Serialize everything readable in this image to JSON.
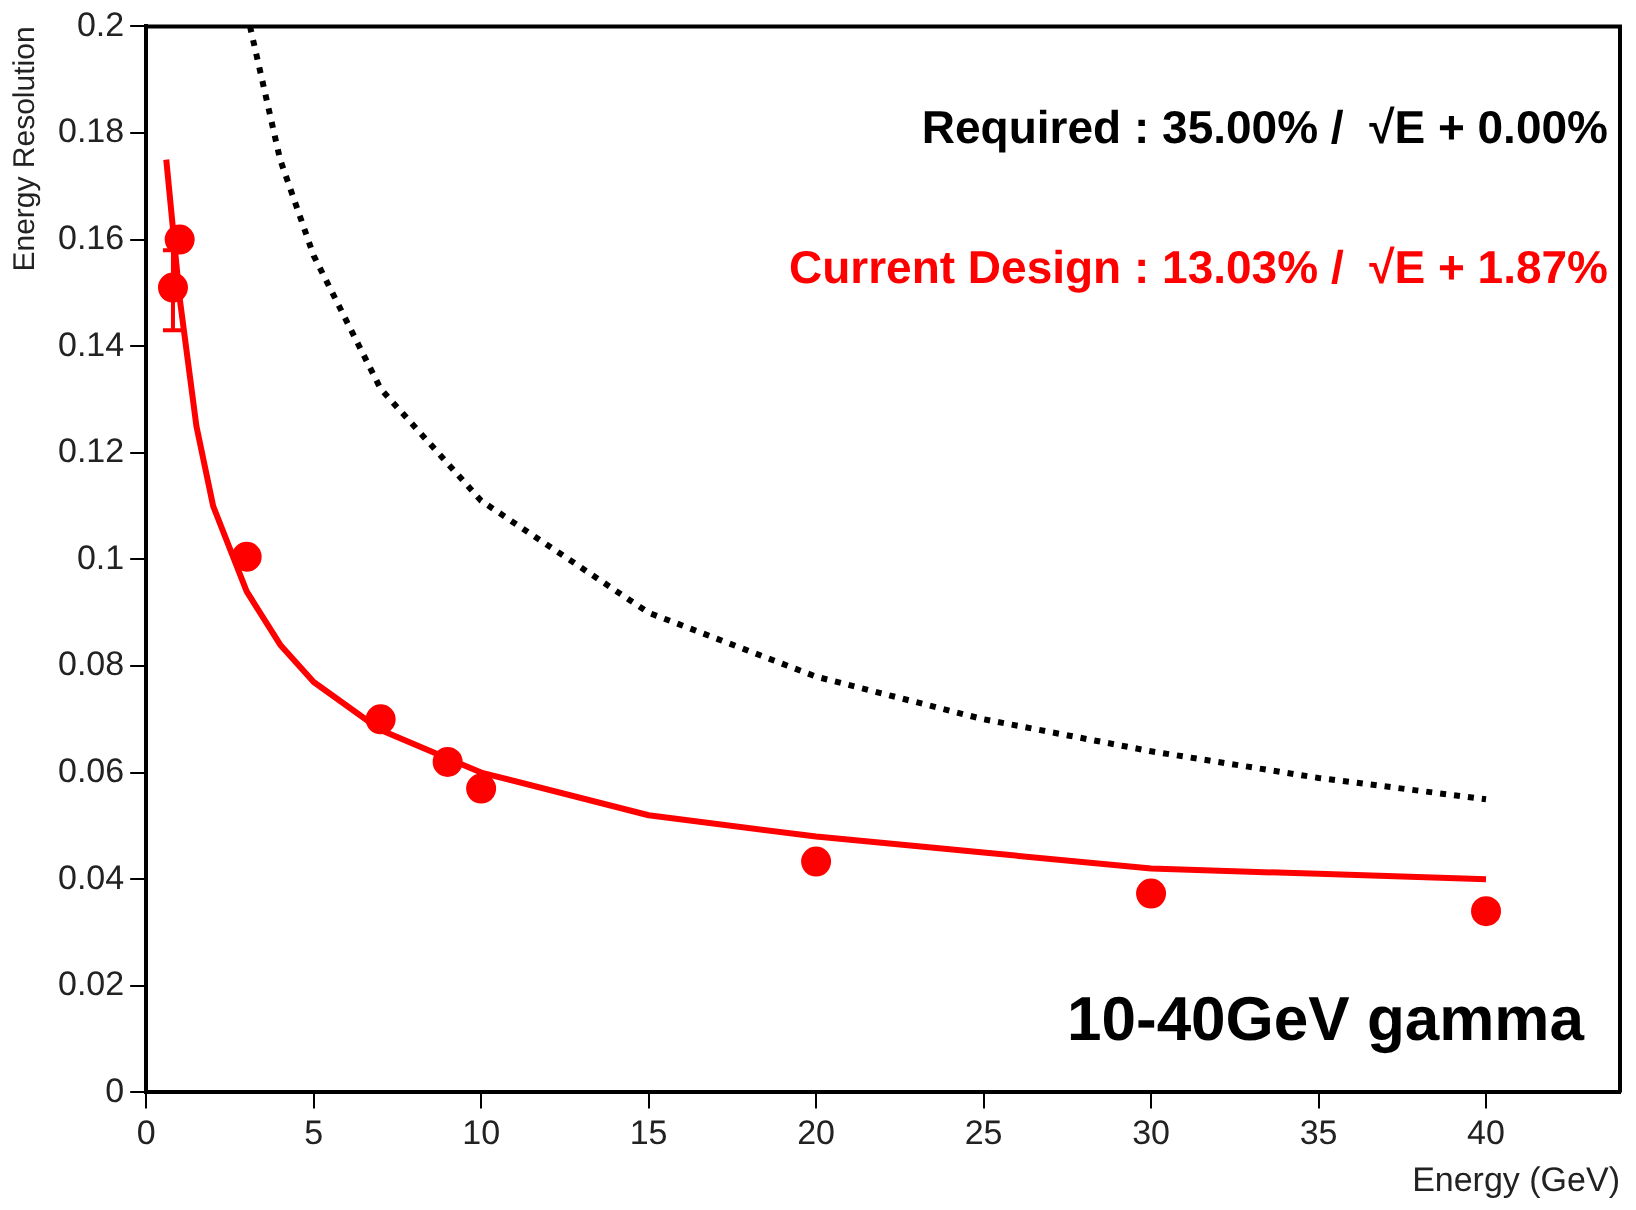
{
  "chart_data": {
    "type": "scatter",
    "xlabel": "Energy (GeV)",
    "ylabel": "Energy Resolution",
    "xlim": [
      0,
      44
    ],
    "xticks": [
      0,
      5,
      10,
      15,
      20,
      25,
      30,
      35,
      40
    ],
    "ylim": [
      0,
      0.2
    ],
    "yticks": [
      0,
      0.02,
      0.04,
      0.06,
      0.08,
      0.1,
      0.12,
      0.14,
      0.16,
      0.18,
      0.2
    ],
    "grid": false,
    "legend": "top right",
    "annotations": [
      "10-40GeV gamma"
    ],
    "series": [
      {
        "name": "Required : 35.00% /  √E + 0.00%",
        "type": "line",
        "line_style": "dotted",
        "color": "#000000",
        "x": [
          3.1,
          4,
          5,
          7,
          10,
          15,
          20,
          25,
          30,
          35,
          40
        ],
        "values": [
          0.2,
          0.175,
          0.157,
          0.132,
          0.111,
          0.09,
          0.078,
          0.07,
          0.064,
          0.059,
          0.055
        ]
      },
      {
        "name": "Current Design : 13.03% /  √E + 1.87%",
        "type": "line",
        "line_style": "solid",
        "color": "#ff0000",
        "x": [
          0.6,
          1,
          1.5,
          2,
          3,
          4,
          5,
          7,
          10,
          15,
          20,
          25,
          30,
          35,
          40
        ],
        "values": [
          0.175,
          0.149,
          0.125,
          0.11,
          0.094,
          0.084,
          0.077,
          0.068,
          0.06,
          0.052,
          0.048,
          0.045,
          0.042,
          0.041,
          0.04
        ]
      },
      {
        "type": "scatter",
        "marker": "circle",
        "color": "#ff0000",
        "x": [
          0.8,
          1,
          3,
          7,
          9,
          10,
          20,
          30,
          40
        ],
        "values": [
          0.151,
          0.16,
          0.1005,
          0.07,
          0.062,
          0.057,
          0.0433,
          0.0373,
          0.034
        ],
        "errors": [
          [
            0.143,
            0.158
          ],
          null,
          null,
          null,
          null,
          null,
          null,
          null,
          null
        ]
      }
    ]
  }
}
